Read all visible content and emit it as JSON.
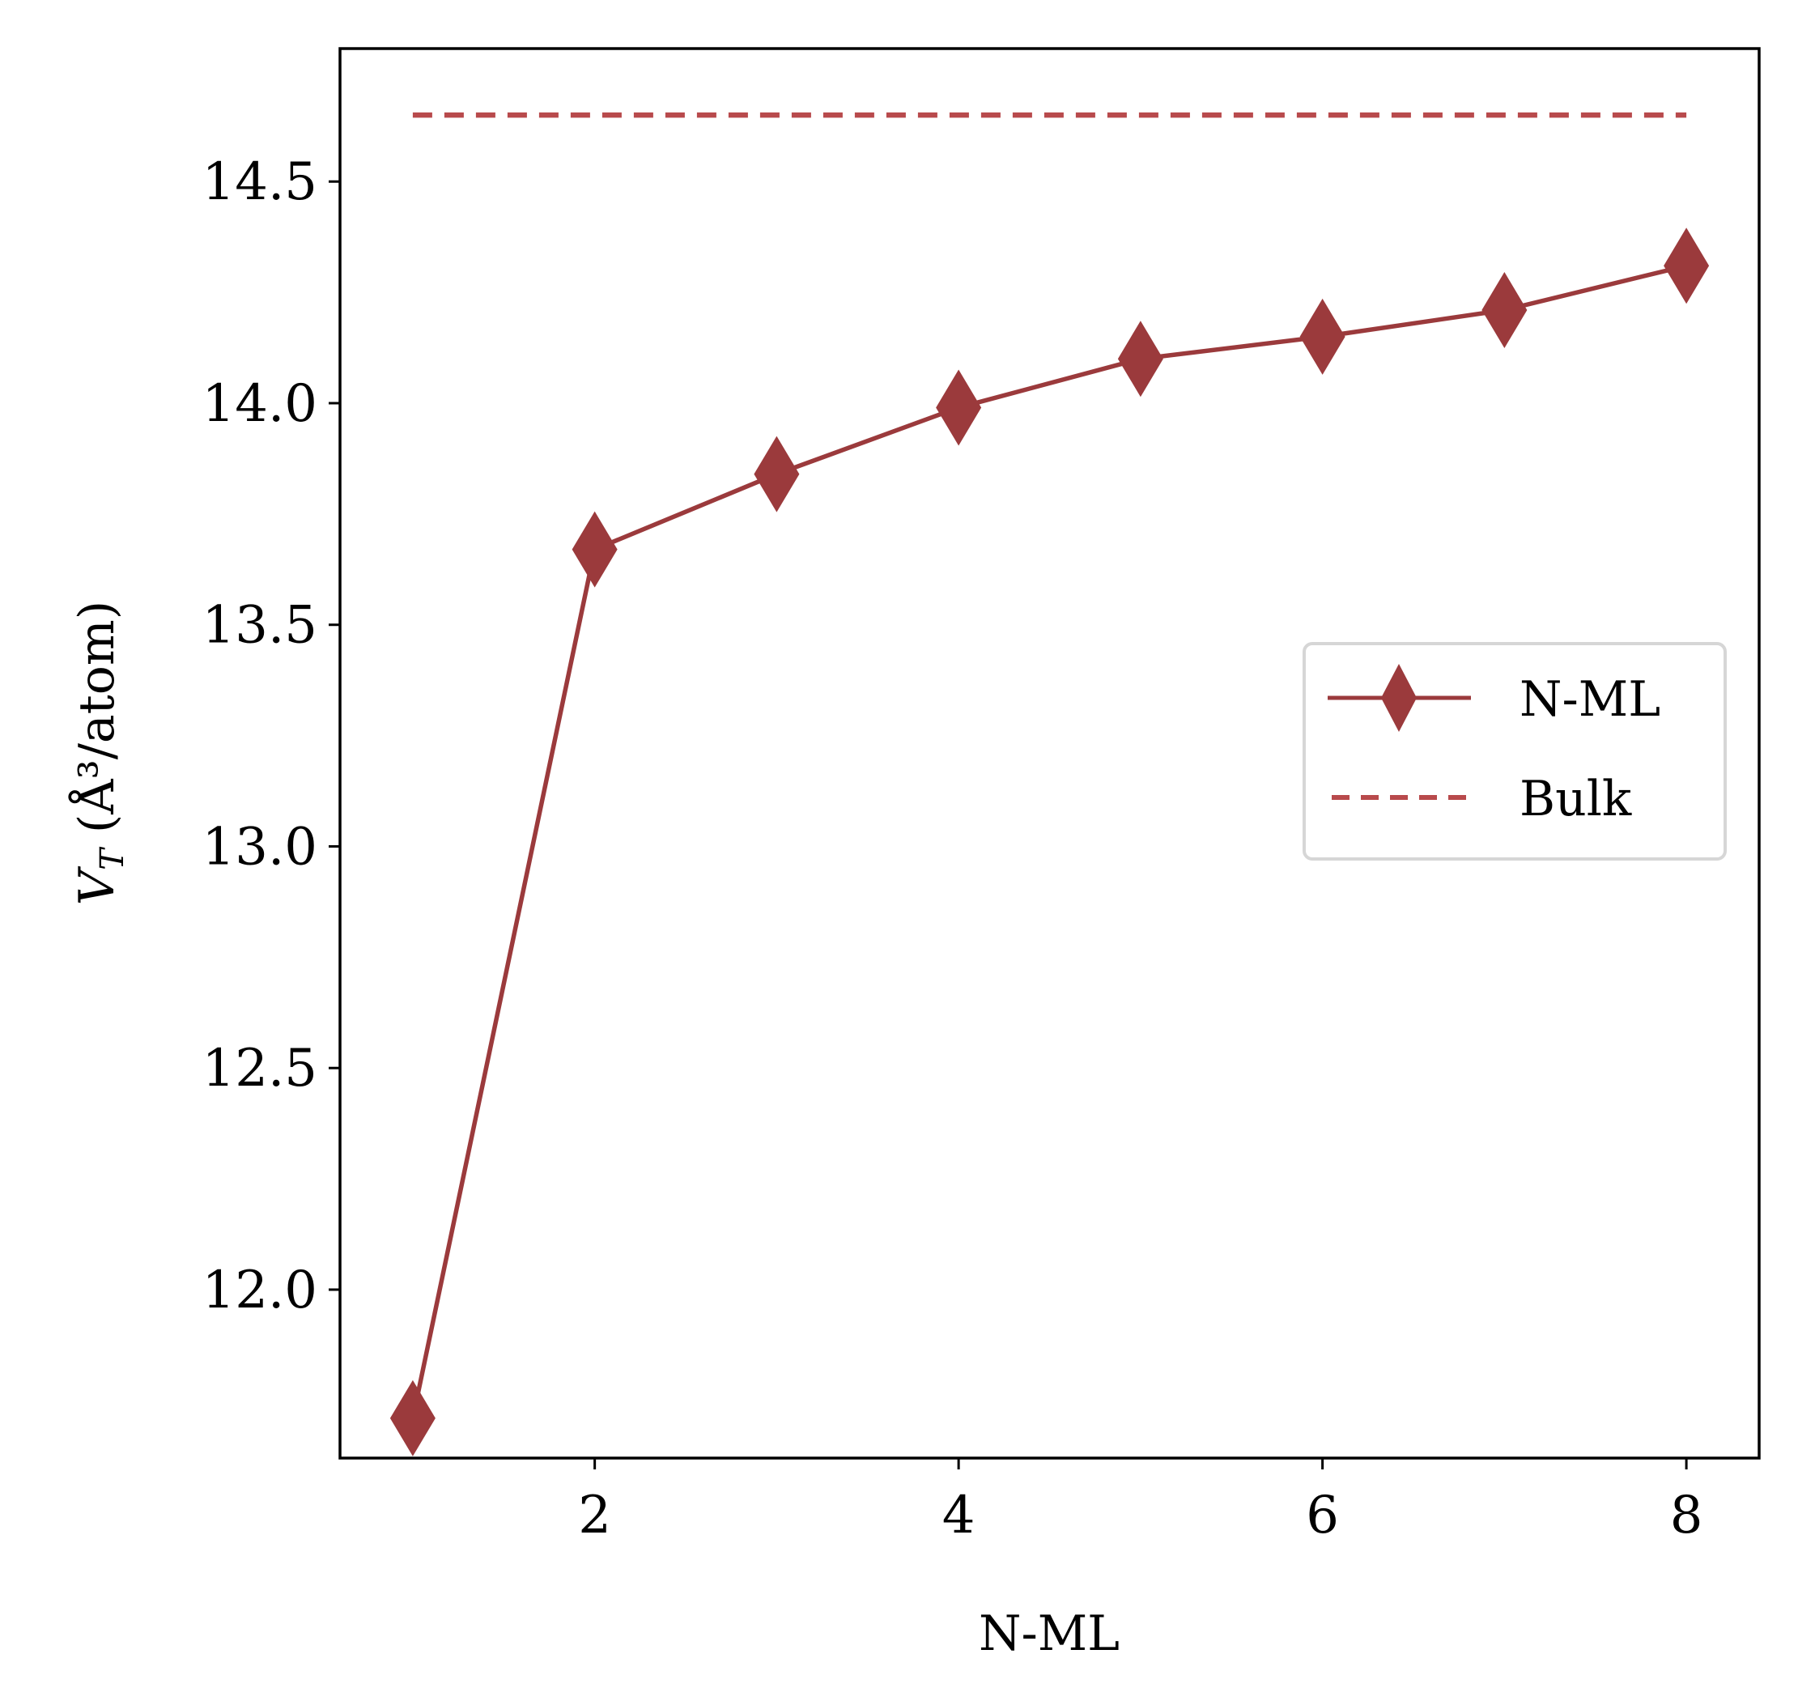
{
  "chart_data": {
    "type": "line",
    "xlabel": "N-ML",
    "ylabel_main": "V",
    "ylabel_sub": "T",
    "ylabel_rest": " (Å³/atom)",
    "xlim": [
      0.6,
      8.4
    ],
    "ylim": [
      11.62,
      14.8
    ],
    "xticks": [
      2,
      4,
      6,
      8
    ],
    "xtick_labels": [
      "2",
      "4",
      "6",
      "8"
    ],
    "yticks": [
      12.0,
      12.5,
      13.0,
      13.5,
      14.0,
      14.5
    ],
    "ytick_labels": [
      "12.0",
      "12.5",
      "13.0",
      "13.5",
      "14.0",
      "14.5"
    ],
    "series": [
      {
        "name": "N-ML",
        "style": "solid",
        "marker": "diamond",
        "color": "#9b3a3c",
        "x": [
          1,
          2,
          3,
          4,
          5,
          6,
          7,
          8
        ],
        "y": [
          11.71,
          13.67,
          13.84,
          13.99,
          14.1,
          14.15,
          14.21,
          14.31
        ]
      },
      {
        "name": "Bulk",
        "style": "dashed",
        "color": "#b84a4c",
        "x": [
          1,
          8
        ],
        "y": [
          14.65,
          14.65
        ]
      }
    ],
    "legend_position": "center-right",
    "grid": false
  }
}
